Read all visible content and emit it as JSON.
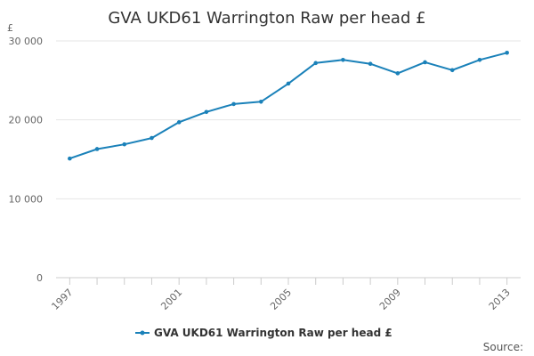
{
  "chart_data": {
    "type": "line",
    "title": "GVA UKD61 Warrington Raw per head £",
    "y_unit": "£",
    "xlabel": "",
    "ylabel": "",
    "x": [
      1997,
      1998,
      1999,
      2000,
      2001,
      2002,
      2003,
      2004,
      2005,
      2006,
      2007,
      2008,
      2009,
      2010,
      2011,
      2012,
      2013
    ],
    "x_tick_labels": [
      "1997",
      "2001",
      "2005",
      "2009",
      "2013"
    ],
    "x_tick_values": [
      1997,
      2001,
      2005,
      2009,
      2013
    ],
    "ylim": [
      0,
      30000
    ],
    "y_tick_values": [
      0,
      10000,
      20000,
      30000
    ],
    "y_tick_labels": [
      "0",
      "10 000",
      "20 000",
      "30 000"
    ],
    "grid": true,
    "legend_position": "bottom",
    "series": [
      {
        "name": "GVA UKD61 Warrington Raw per head £",
        "color": "#1a81b9",
        "values": [
          15100,
          16300,
          16900,
          17700,
          19700,
          21000,
          22000,
          22300,
          24600,
          27200,
          27600,
          27100,
          25900,
          27300,
          26300,
          27600,
          28500
        ]
      }
    ],
    "source_label": "Source:"
  }
}
